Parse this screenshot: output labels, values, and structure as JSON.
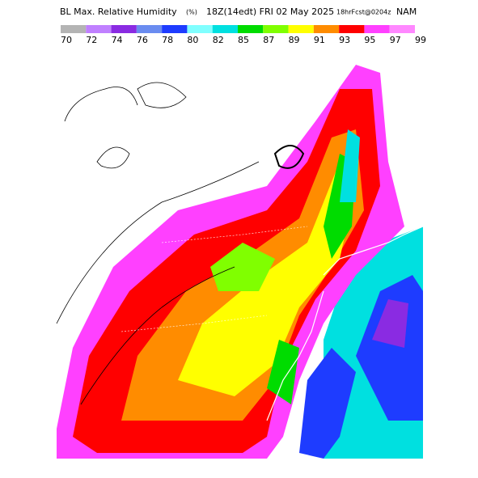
{
  "header": {
    "title": "BL Max. Relative Humidity",
    "unit": "(%)",
    "valid": "18Z(14edt) FRI 02 May 2025",
    "forecast": "18hrFcst@0204z",
    "model": "NAM"
  },
  "colorbar": {
    "labels": [
      70,
      72,
      74,
      76,
      78,
      80,
      82,
      85,
      87,
      89,
      91,
      93,
      95,
      97,
      99
    ],
    "colors": [
      "#b4b4b4",
      "#c080ff",
      "#8a2be2",
      "#6a8cf0",
      "#1e3cff",
      "#80ffff",
      "#00e0e0",
      "#00dc00",
      "#80ff00",
      "#ffff00",
      "#ff8c00",
      "#ff0000",
      "#ff40ff",
      "#ff88ff"
    ]
  }
}
